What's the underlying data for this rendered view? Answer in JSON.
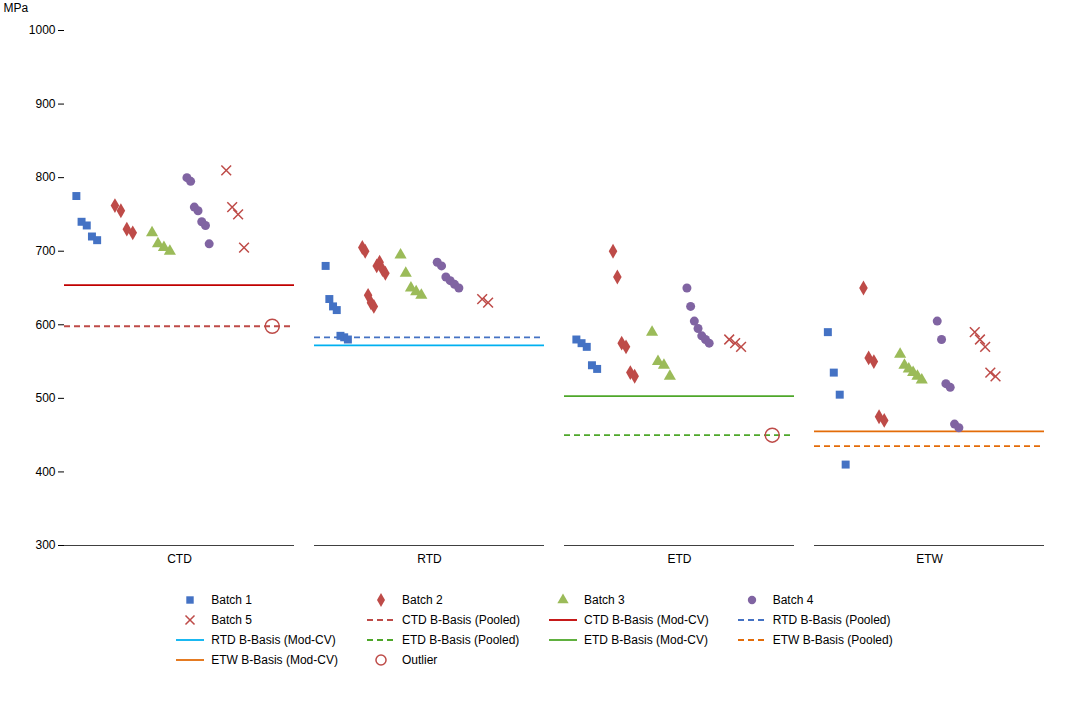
{
  "chart_data": {
    "type": "scatter",
    "ylabel": "MPa",
    "categories": [
      "CTD",
      "RTD",
      "ETD",
      "ETW"
    ],
    "ylim": [
      300,
      1000
    ],
    "yticks": [
      300,
      400,
      500,
      600,
      700,
      800,
      900,
      1000
    ],
    "grid": false,
    "legend": "bottom",
    "series": [
      {
        "name": "Batch 1",
        "color": "#4472C4",
        "marker": "square",
        "values": [
          [
            775,
            740,
            735,
            720,
            715
          ],
          [
            680,
            635,
            625,
            620,
            585,
            583,
            580
          ],
          [
            580,
            575,
            570,
            545,
            540
          ],
          [
            590,
            535,
            505,
            410
          ]
        ]
      },
      {
        "name": "Batch 2",
        "color": "#BE4B48",
        "marker": "diamond",
        "values": [
          [
            762,
            755,
            730,
            725
          ],
          [
            705,
            700,
            640,
            630,
            625,
            680,
            685,
            675,
            670
          ],
          [
            700,
            665,
            575,
            570,
            535,
            530
          ],
          [
            650,
            555,
            550,
            475,
            470
          ]
        ]
      },
      {
        "name": "Batch 3",
        "color": "#9BBB59",
        "marker": "triangle",
        "values": [
          [
            725,
            710,
            705,
            700
          ],
          [
            695,
            670,
            650,
            645,
            640
          ],
          [
            590,
            550,
            545,
            530
          ],
          [
            560,
            545,
            540,
            535,
            530,
            525
          ]
        ]
      },
      {
        "name": "Batch 4",
        "color": "#8064A2",
        "marker": "circle",
        "values": [
          [
            800,
            795,
            760,
            755,
            740,
            735,
            710
          ],
          [
            685,
            680,
            665,
            660,
            655,
            650
          ],
          [
            650,
            625,
            605,
            595,
            585,
            580,
            575
          ],
          [
            605,
            580,
            520,
            515,
            465,
            460
          ]
        ]
      },
      {
        "name": "Batch 5",
        "color": "#BE4B48",
        "marker": "x",
        "values": [
          [
            810,
            760,
            750,
            705
          ],
          [
            635,
            630
          ],
          [
            580,
            575,
            570
          ],
          [
            590,
            580,
            570,
            535,
            530
          ]
        ]
      },
      {
        "name": "CTD B-Basis (Pooled)",
        "type": "line",
        "color": "#BE4B48",
        "line_style": "dashed",
        "values": [
          598,
          null,
          null,
          null
        ]
      },
      {
        "name": "CTD B-Basis (Mod-CV)",
        "type": "line",
        "color": "#C00000",
        "line_style": "solid",
        "values": [
          654,
          null,
          null,
          null
        ]
      },
      {
        "name": "RTD B-Basis (Pooled)",
        "type": "line",
        "color": "#4472C4",
        "line_style": "dashed",
        "values": [
          null,
          583,
          null,
          null
        ]
      },
      {
        "name": "RTD B-Basis (Mod-CV)",
        "type": "line",
        "color": "#00B0F0",
        "line_style": "solid",
        "values": [
          null,
          572,
          null,
          null
        ]
      },
      {
        "name": "ETD B-Basis (Pooled)",
        "type": "line",
        "color": "#4EA72A",
        "line_style": "dashed",
        "values": [
          null,
          null,
          450,
          null
        ]
      },
      {
        "name": "ETD B-Basis (Mod-CV)",
        "type": "line",
        "color": "#4EA72A",
        "line_style": "solid",
        "values": [
          null,
          null,
          503,
          null
        ]
      },
      {
        "name": "ETW B-Basis (Pooled)",
        "type": "line",
        "color": "#E36C09",
        "line_style": "dashed",
        "values": [
          null,
          null,
          null,
          435
        ]
      },
      {
        "name": "ETW B-Basis (Mod-CV)",
        "type": "line",
        "color": "#E36C09",
        "line_style": "solid",
        "values": [
          null,
          null,
          null,
          455
        ]
      },
      {
        "name": "Outlier",
        "color": "#BE4B48",
        "marker": "open_circle",
        "values": [
          598,
          null,
          450,
          null
        ]
      }
    ]
  }
}
